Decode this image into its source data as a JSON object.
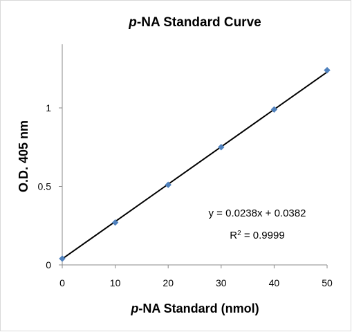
{
  "chart_data": {
    "type": "scatter",
    "title_prefix": "p",
    "title_rest": "-NA Standard Curve",
    "xlabel_prefix": "p",
    "xlabel_rest": "-NA Standard (nmol)",
    "ylabel": "O.D. 405 nm",
    "xlim": [
      0,
      50
    ],
    "ylim": [
      0,
      1.3
    ],
    "x_ticks": [
      "0",
      "10",
      "20",
      "30",
      "40",
      "50"
    ],
    "y_ticks": [
      "0",
      "0.5",
      "1"
    ],
    "series": [
      {
        "x": [
          0,
          10,
          20,
          30,
          40,
          50
        ],
        "y": [
          0.04,
          0.27,
          0.51,
          0.75,
          0.99,
          1.24
        ],
        "marker_color": "#4f81bd"
      }
    ],
    "trendline": {
      "slope": 0.0238,
      "intercept": 0.0382,
      "color": "#000000"
    },
    "equation": "y = 0.0238x + 0.0382",
    "r_squared_prefix": "R",
    "r_squared_exp": "2",
    "r_squared_value": " = 0.9999",
    "grid": false,
    "legend": "none"
  }
}
